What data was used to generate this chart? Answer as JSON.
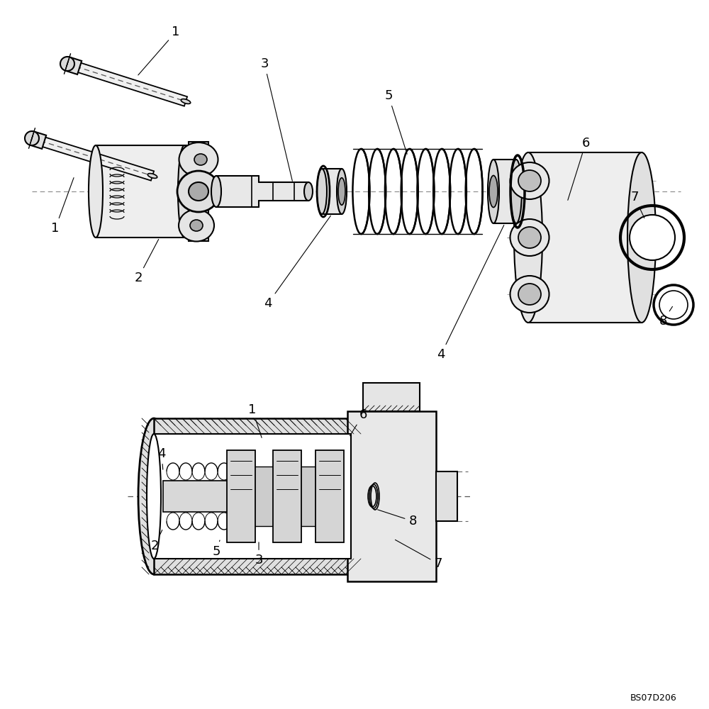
{
  "bg_color": "#ffffff",
  "lc": "#000000",
  "dc": "#666666",
  "watermark": "BS07D206",
  "fig_w": 10.0,
  "fig_h": 10.0,
  "dpi": 100
}
